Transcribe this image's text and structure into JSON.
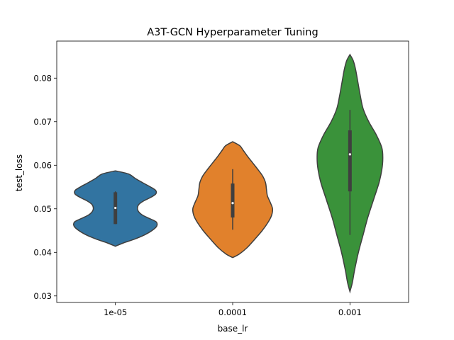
{
  "chart_data": {
    "type": "violin",
    "title": "A3T-GCN Hyperparameter Tuning",
    "xlabel": "base_lr",
    "ylabel": "test_loss",
    "categories": [
      "1e-05",
      "0.0001",
      "0.001"
    ],
    "ylim": [
      0.0285,
      0.0885
    ],
    "yticks": [
      0.03,
      0.04,
      0.05,
      0.06,
      0.07,
      0.08
    ],
    "ytick_labels": [
      "0.03",
      "0.04",
      "0.05",
      "0.06",
      "0.07",
      "0.08"
    ],
    "grid": false,
    "violins": [
      {
        "category": "1e-05",
        "color": "#3274a1",
        "kde_min": 0.0414,
        "kde_max": 0.0587,
        "profile": [
          [
            0.0414,
            0.0
          ],
          [
            0.0422,
            0.18
          ],
          [
            0.043,
            0.4
          ],
          [
            0.044,
            0.62
          ],
          [
            0.045,
            0.78
          ],
          [
            0.046,
            0.88
          ],
          [
            0.047,
            0.87
          ],
          [
            0.0478,
            0.72
          ],
          [
            0.0486,
            0.57
          ],
          [
            0.0494,
            0.49
          ],
          [
            0.0502,
            0.47
          ],
          [
            0.051,
            0.5
          ],
          [
            0.0518,
            0.6
          ],
          [
            0.0526,
            0.75
          ],
          [
            0.0534,
            0.86
          ],
          [
            0.0542,
            0.86
          ],
          [
            0.055,
            0.75
          ],
          [
            0.056,
            0.58
          ],
          [
            0.057,
            0.42
          ],
          [
            0.058,
            0.28
          ],
          [
            0.0587,
            0.0
          ]
        ],
        "median": 0.0502,
        "q1": 0.0465,
        "q3": 0.0538,
        "whisker_low": 0.0465,
        "whisker_high": 0.054
      },
      {
        "category": "0.0001",
        "color": "#e1812c",
        "kde_min": 0.0388,
        "kde_max": 0.0654,
        "profile": [
          [
            0.0388,
            0.0
          ],
          [
            0.0396,
            0.14
          ],
          [
            0.041,
            0.3
          ],
          [
            0.043,
            0.47
          ],
          [
            0.045,
            0.63
          ],
          [
            0.047,
            0.76
          ],
          [
            0.0485,
            0.83
          ],
          [
            0.05,
            0.85
          ],
          [
            0.0515,
            0.8
          ],
          [
            0.053,
            0.74
          ],
          [
            0.0545,
            0.72
          ],
          [
            0.056,
            0.7
          ],
          [
            0.0575,
            0.64
          ],
          [
            0.059,
            0.54
          ],
          [
            0.0605,
            0.43
          ],
          [
            0.062,
            0.32
          ],
          [
            0.0635,
            0.22
          ],
          [
            0.0645,
            0.15
          ],
          [
            0.0654,
            0.0
          ]
        ],
        "median": 0.0513,
        "q1": 0.048,
        "q3": 0.0558,
        "whisker_low": 0.0452,
        "whisker_high": 0.0591
      },
      {
        "category": "0.001",
        "color": "#3a923a",
        "kde_min": 0.031,
        "kde_max": 0.0854,
        "profile": [
          [
            0.031,
            0.0
          ],
          [
            0.033,
            0.05
          ],
          [
            0.036,
            0.1
          ],
          [
            0.04,
            0.18
          ],
          [
            0.044,
            0.28
          ],
          [
            0.048,
            0.38
          ],
          [
            0.052,
            0.5
          ],
          [
            0.056,
            0.62
          ],
          [
            0.059,
            0.68
          ],
          [
            0.0615,
            0.7
          ],
          [
            0.064,
            0.68
          ],
          [
            0.067,
            0.56
          ],
          [
            0.07,
            0.4
          ],
          [
            0.073,
            0.28
          ],
          [
            0.076,
            0.22
          ],
          [
            0.079,
            0.17
          ],
          [
            0.082,
            0.12
          ],
          [
            0.084,
            0.07
          ],
          [
            0.0854,
            0.0
          ]
        ],
        "median": 0.0625,
        "q1": 0.054,
        "q3": 0.068,
        "whisker_low": 0.044,
        "whisker_high": 0.0727
      }
    ]
  }
}
